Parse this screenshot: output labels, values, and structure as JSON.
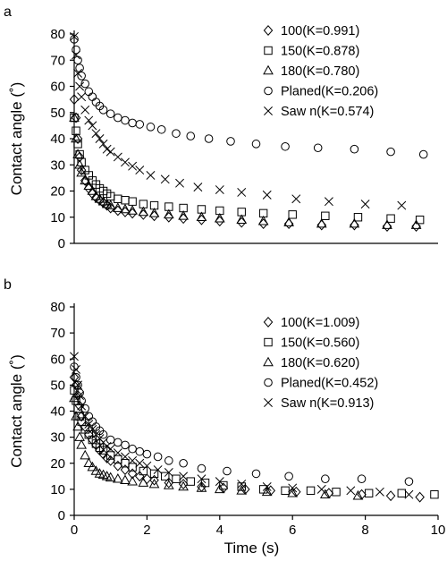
{
  "chart_data": [
    {
      "type": "scatter",
      "panel": "a",
      "xlabel": "",
      "ylabel": "Contact angle (˚)",
      "xlim": [
        0,
        10
      ],
      "ylim": [
        0,
        80
      ],
      "yticks": [
        0,
        10,
        20,
        30,
        40,
        50,
        60,
        70,
        80
      ],
      "xticks": [],
      "legend_position": "top-right",
      "series": [
        {
          "name": "100(K=0.991)",
          "marker": "diamond",
          "x": [
            0,
            0.05,
            0.1,
            0.15,
            0.2,
            0.3,
            0.4,
            0.5,
            0.6,
            0.7,
            0.8,
            0.9,
            1.0,
            1.2,
            1.4,
            1.6,
            1.9,
            2.2,
            2.6,
            3.0,
            3.5,
            4.0,
            4.6,
            5.2,
            5.9,
            6.8,
            7.7,
            8.6,
            9.4
          ],
          "y": [
            55,
            48,
            40,
            33,
            28,
            24,
            21,
            19,
            17.5,
            16.5,
            15.5,
            14.5,
            13.5,
            12.5,
            12,
            11.5,
            11,
            10.5,
            10,
            9.5,
            9,
            8.5,
            8,
            7.5,
            7.5,
            7,
            7,
            6.5,
            6.5
          ]
        },
        {
          "name": "150(K=0.878)",
          "marker": "square",
          "x": [
            0,
            0.05,
            0.1,
            0.15,
            0.2,
            0.3,
            0.4,
            0.5,
            0.6,
            0.7,
            0.8,
            0.9,
            1.0,
            1.2,
            1.4,
            1.6,
            1.9,
            2.2,
            2.6,
            3.0,
            3.5,
            4.0,
            4.6,
            5.2,
            6.0,
            6.9,
            7.8,
            8.7,
            9.5
          ],
          "y": [
            48,
            43,
            38,
            34,
            31,
            28,
            26,
            24,
            22.5,
            21,
            20,
            19,
            18,
            17,
            16.5,
            16,
            15,
            14.5,
            14,
            13.5,
            13,
            12.5,
            12,
            11.5,
            11,
            10.5,
            10,
            9.5,
            9
          ]
        },
        {
          "name": "180(K=0.780)",
          "marker": "triangle",
          "x": [
            0,
            0.05,
            0.1,
            0.15,
            0.2,
            0.3,
            0.4,
            0.5,
            0.6,
            0.7,
            0.8,
            0.9,
            1.0,
            1.2,
            1.4,
            1.6,
            1.9,
            2.2,
            2.6,
            3.0,
            3.5,
            4.0,
            4.6,
            5.2,
            5.9,
            6.8,
            7.7,
            8.6,
            9.4
          ],
          "y": [
            48,
            40,
            34,
            30,
            27,
            24,
            22,
            20,
            18,
            17,
            16,
            15,
            14.5,
            13.5,
            13,
            12.5,
            12,
            11.5,
            11,
            10.5,
            10,
            9.5,
            9,
            8.5,
            8,
            7.5,
            7.5,
            7,
            7
          ]
        },
        {
          "name": "Planed(K=0.206)",
          "marker": "circle",
          "x": [
            0,
            0.05,
            0.1,
            0.15,
            0.2,
            0.3,
            0.4,
            0.5,
            0.6,
            0.7,
            0.8,
            1.0,
            1.2,
            1.4,
            1.6,
            1.8,
            2.1,
            2.4,
            2.8,
            3.2,
            3.7,
            4.3,
            5.0,
            5.8,
            6.7,
            7.7,
            8.7,
            9.6
          ],
          "y": [
            78,
            74,
            70,
            67,
            64,
            61,
            58,
            56,
            54,
            52.5,
            51,
            49.5,
            48,
            47,
            46,
            45.5,
            44.5,
            43.5,
            42,
            41,
            40,
            39,
            38,
            37,
            36.5,
            36,
            35,
            34
          ]
        },
        {
          "name": "Saw n(K=0.574)",
          "marker": "x",
          "x": [
            0,
            0.05,
            0.1,
            0.15,
            0.2,
            0.3,
            0.4,
            0.5,
            0.6,
            0.7,
            0.8,
            0.9,
            1.0,
            1.2,
            1.4,
            1.6,
            1.8,
            2.1,
            2.5,
            2.9,
            3.4,
            4.0,
            4.6,
            5.3,
            6.1,
            7.0,
            8.0,
            9.0
          ],
          "y": [
            79,
            72,
            65,
            60,
            56,
            51,
            47,
            45,
            42,
            40,
            38,
            36,
            35,
            33,
            31,
            29.5,
            28,
            26,
            24.5,
            23,
            21.5,
            20.5,
            19.5,
            18.5,
            17,
            16,
            15,
            14.5
          ]
        }
      ]
    },
    {
      "type": "scatter",
      "panel": "b",
      "xlabel": "Time (s)",
      "ylabel": "Contact angle (˚)",
      "xlim": [
        0,
        10
      ],
      "ylim": [
        0,
        80
      ],
      "yticks": [
        0,
        10,
        20,
        30,
        40,
        50,
        60,
        70,
        80
      ],
      "xticks": [
        0,
        2,
        4,
        6,
        8,
        10
      ],
      "legend_position": "top-right",
      "series": [
        {
          "name": "100(K=1.009)",
          "marker": "diamond",
          "x": [
            0,
            0.05,
            0.1,
            0.15,
            0.2,
            0.3,
            0.4,
            0.5,
            0.6,
            0.7,
            0.8,
            0.9,
            1.0,
            1.2,
            1.4,
            1.6,
            1.8,
            2.0,
            2.2,
            2.6,
            3.0,
            3.5,
            4.1,
            4.7,
            5.4,
            6.1,
            7.0,
            7.9,
            8.7,
            9.5
          ],
          "y": [
            53,
            50,
            46,
            42,
            38,
            34,
            31,
            29,
            27,
            25,
            23.5,
            22,
            21,
            19,
            17.5,
            16,
            15,
            14,
            13.5,
            12.5,
            12,
            11,
            10.5,
            10,
            9.5,
            9,
            8.5,
            8,
            7.5,
            7
          ]
        },
        {
          "name": "150(K=0.560)",
          "marker": "square",
          "x": [
            0,
            0.05,
            0.1,
            0.15,
            0.2,
            0.3,
            0.4,
            0.5,
            0.6,
            0.7,
            0.8,
            1.0,
            1.2,
            1.4,
            1.6,
            1.9,
            2.2,
            2.5,
            2.8,
            3.2,
            3.6,
            4.1,
            4.6,
            5.2,
            5.8,
            6.5,
            7.2,
            8.1,
            9.0,
            9.9
          ],
          "y": [
            48,
            44,
            41,
            38,
            36,
            33,
            31,
            29,
            27.5,
            26,
            25,
            23,
            21.5,
            20,
            18.5,
            17,
            16,
            15,
            14,
            13,
            12.5,
            11.5,
            11,
            10,
            9.5,
            9.5,
            9,
            8.5,
            8.5,
            8
          ]
        },
        {
          "name": "180(K=0.620)",
          "marker": "triangle",
          "x": [
            0,
            0.05,
            0.1,
            0.15,
            0.2,
            0.3,
            0.4,
            0.5,
            0.6,
            0.7,
            0.8,
            0.9,
            1.0,
            1.2,
            1.4,
            1.6,
            1.9,
            2.2,
            2.6,
            3.0,
            3.5,
            4.0,
            4.6,
            5.3,
            6.0,
            6.9,
            7.8
          ],
          "y": [
            45,
            38,
            34,
            30,
            27,
            23,
            20,
            18.5,
            17,
            16,
            15.5,
            15,
            14.5,
            14,
            13.5,
            13,
            12.5,
            12,
            11.5,
            11,
            10.5,
            10,
            9.5,
            9,
            8.5,
            8,
            7.5
          ]
        },
        {
          "name": "Planed(K=0.452)",
          "marker": "circle",
          "x": [
            0,
            0.05,
            0.1,
            0.15,
            0.2,
            0.3,
            0.4,
            0.5,
            0.6,
            0.7,
            0.8,
            1.0,
            1.2,
            1.4,
            1.6,
            1.8,
            2.0,
            2.3,
            2.6,
            3.0,
            3.5,
            4.2,
            5.0,
            5.9,
            6.9,
            7.9,
            9.2
          ],
          "y": [
            57,
            53,
            50,
            47,
            44,
            41,
            38,
            36,
            34,
            32.5,
            31,
            29,
            28,
            27,
            25.5,
            24.5,
            23.5,
            22.5,
            21,
            20,
            18,
            17,
            16,
            15,
            14,
            14,
            13
          ]
        },
        {
          "name": "Saw n(K=0.913)",
          "marker": "x",
          "x": [
            0,
            0.05,
            0.1,
            0.15,
            0.2,
            0.3,
            0.4,
            0.5,
            0.6,
            0.7,
            0.8,
            0.9,
            1.0,
            1.2,
            1.4,
            1.6,
            1.8,
            2.0,
            2.3,
            2.6,
            3.0,
            3.5,
            4.0,
            4.6,
            5.3,
            6.0,
            6.8,
            7.6,
            8.4,
            9.2
          ],
          "y": [
            61,
            56,
            50,
            46,
            42,
            38,
            35,
            33,
            31,
            29.5,
            28,
            26.5,
            25.5,
            24,
            22.5,
            21,
            20,
            19,
            17.5,
            16.5,
            15,
            14,
            13,
            12,
            11,
            10.5,
            10,
            9.5,
            9,
            8
          ]
        }
      ]
    }
  ]
}
